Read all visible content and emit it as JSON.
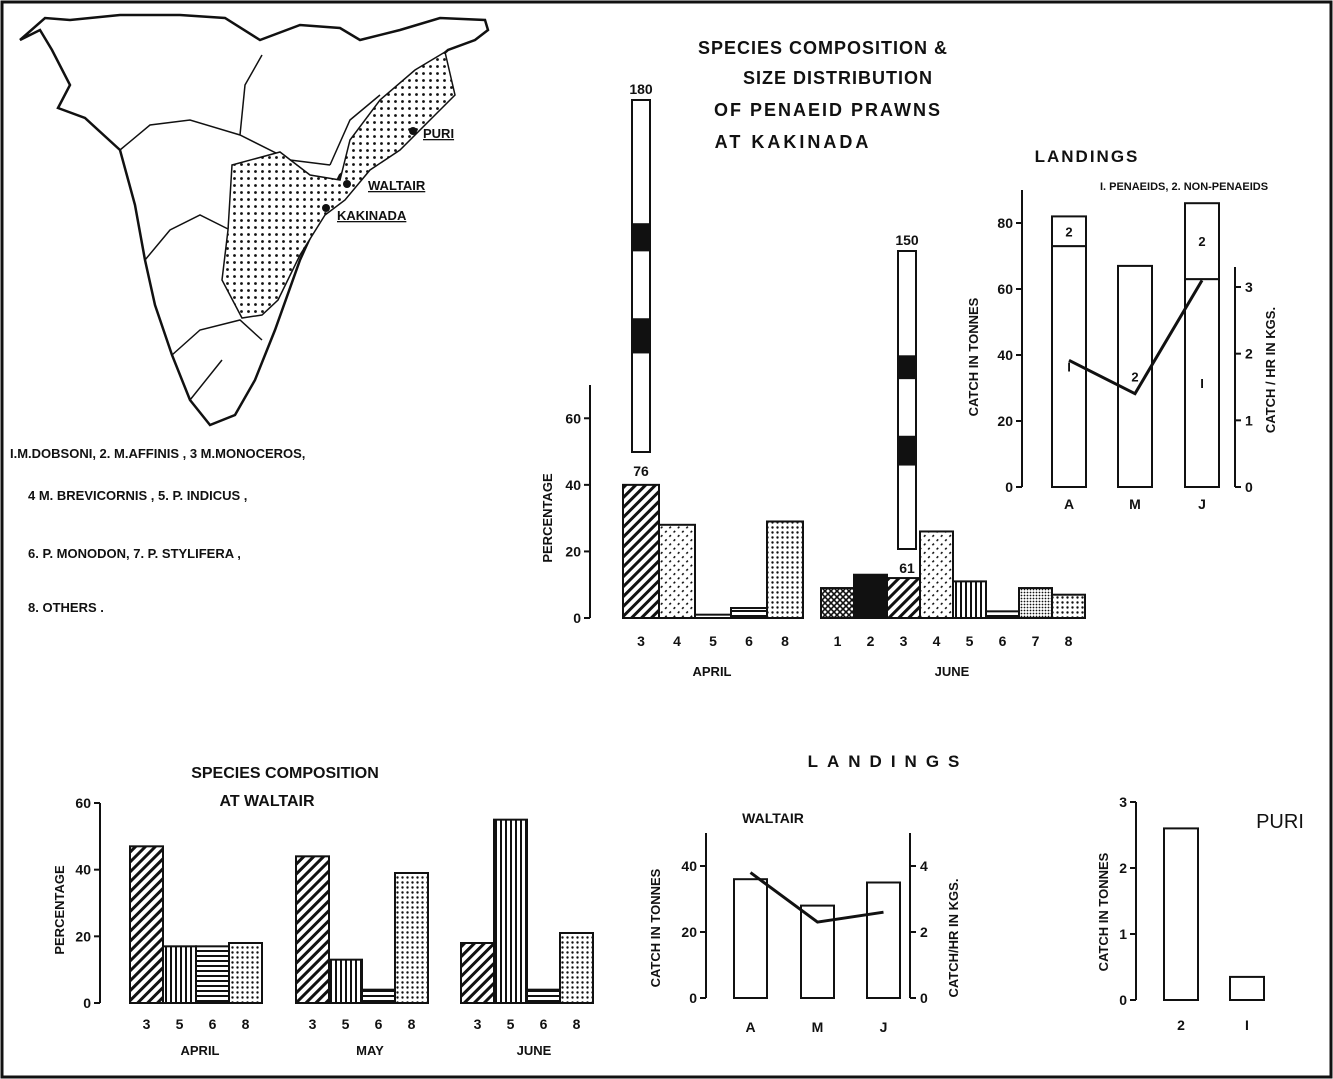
{
  "title_lines": [
    "SPECIES COMPOSITION &",
    "SIZE DISTRIBUTION",
    "OF PENAEID PRAWNS",
    "AT KAKINADA"
  ],
  "map": {
    "labels": {
      "puri": "PURI",
      "waltair": "WALTAIR",
      "kakinada": "KAKINADA"
    },
    "species_key_lines": [
      "I.M.DOBSONI,  2. M.AFFINIS , 3 M.MONOCEROS,",
      "4  M. BREVICORNIS ,  5. P. INDICUS ,",
      "6. P. MONODON,  7. P. STYLIFERA ,",
      "8. OTHERS ."
    ]
  },
  "colors": {
    "ink": "#111111",
    "paper": "#ffffff"
  },
  "chart_data": [
    {
      "type": "bar",
      "id": "kakinada_species",
      "title": "SPECIES COMPOSITION & SIZE DISTRIBUTION OF PENAEID PRAWNS AT KAKINADA",
      "ylabel": "PERCENTAGE",
      "ylim": [
        0,
        70
      ],
      "yticks": [
        0,
        20,
        40,
        60
      ],
      "groups": [
        {
          "name": "APRIL",
          "categories": [
            "3",
            "4",
            "5",
            "6",
            "8"
          ],
          "values": [
            40,
            28,
            1,
            3,
            29
          ],
          "patterns": [
            "hatch",
            "dots-diag",
            "plain",
            "hstripe",
            "dots"
          ]
        },
        {
          "name": "JUNE",
          "categories": [
            "1",
            "2",
            "3",
            "4",
            "5",
            "6",
            "7",
            "8"
          ],
          "values": [
            9,
            13,
            12,
            26,
            11,
            2,
            9,
            7
          ],
          "patterns": [
            "cross",
            "solid",
            "hatch",
            "dots-diag",
            "vstripe",
            "hstripe",
            "dense-dots",
            "dots"
          ]
        }
      ],
      "size_bars": [
        {
          "group": "APRIL",
          "min": 76,
          "max": 180,
          "min_label": "76",
          "max_label": "180"
        },
        {
          "group": "JUNE",
          "min": 61,
          "max": 150,
          "min_label": "61",
          "max_label": "150"
        }
      ]
    },
    {
      "type": "bar",
      "id": "kakinada_landings",
      "title": "LANDINGS",
      "subtitle": "I. PENAEIDS, 2. NON-PENAEIDS",
      "ylabel": "CATCH IN TONNES",
      "y2label": "CATCH / HR IN KGS.",
      "ylim": [
        0,
        90
      ],
      "yticks": [
        0,
        20,
        40,
        60,
        80
      ],
      "y2lim": [
        0,
        3.3
      ],
      "y2ticks": [
        0,
        1,
        2,
        3
      ],
      "categories": [
        "A",
        "M",
        "J"
      ],
      "bars": [
        {
          "category": "A",
          "segments": [
            {
              "label": "I",
              "value": 73
            },
            {
              "label": "2",
              "value": 9
            }
          ]
        },
        {
          "category": "M",
          "segments": [
            {
              "label": "2",
              "value": 67
            }
          ]
        },
        {
          "category": "J",
          "segments": [
            {
              "label": "I",
              "value": 63
            },
            {
              "label": "2",
              "value": 23
            }
          ]
        }
      ],
      "line": {
        "values": [
          1.9,
          1.4,
          3.1
        ]
      }
    },
    {
      "type": "bar",
      "id": "waltair_species",
      "title": "SPECIES COMPOSITION AT WALTAIR",
      "ylabel": "PERCENTAGE",
      "ylim": [
        0,
        60
      ],
      "yticks": [
        0,
        20,
        40,
        60
      ],
      "groups": [
        {
          "name": "APRIL",
          "categories": [
            "3",
            "5",
            "6",
            "8"
          ],
          "values": [
            47,
            17,
            17,
            18
          ],
          "patterns": [
            "hatch",
            "vstripe",
            "hstripe",
            "dots"
          ]
        },
        {
          "name": "MAY",
          "categories": [
            "3",
            "5",
            "6",
            "8"
          ],
          "values": [
            44,
            13,
            4,
            39
          ],
          "patterns": [
            "hatch",
            "vstripe",
            "hstripe",
            "dots"
          ]
        },
        {
          "name": "JUNE",
          "categories": [
            "3",
            "5",
            "6",
            "8"
          ],
          "values": [
            18,
            55,
            4,
            21
          ],
          "patterns": [
            "hatch",
            "vstripe",
            "hstripe",
            "dots"
          ]
        }
      ]
    },
    {
      "type": "bar",
      "id": "waltair_landings",
      "title": "LANDINGS",
      "subtitle": "WALTAIR",
      "ylabel": "CATCH IN TONNES",
      "y2label": "CATCH/HR IN KGS.",
      "ylim": [
        0,
        50
      ],
      "yticks": [
        0,
        20,
        40
      ],
      "y2lim": [
        0,
        5
      ],
      "y2ticks": [
        0,
        2,
        4
      ],
      "categories": [
        "A",
        "M",
        "J"
      ],
      "values": [
        36,
        28,
        35
      ],
      "line": {
        "values": [
          3.8,
          2.3,
          2.6
        ]
      }
    },
    {
      "type": "bar",
      "id": "puri_landings",
      "title": "PURI",
      "ylabel": "CATCH IN TONNES",
      "ylim": [
        0,
        3
      ],
      "yticks": [
        0,
        1,
        2,
        3
      ],
      "categories": [
        "2",
        "I"
      ],
      "values": [
        2.6,
        0.35
      ]
    }
  ]
}
